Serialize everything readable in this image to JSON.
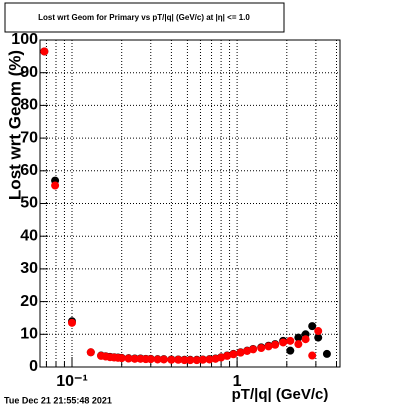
{
  "chart_data": {
    "type": "scatter",
    "title": "Lost wrt Geom for Primary vs pT/|q| (GeV/c) at |η| <= 1.0",
    "x_label": "pT/|q| (GeV/c)",
    "y_label": "Lost wrt Geom (%)",
    "timestamp": "Tue Dec 21 21:55:48 2021",
    "x": [
      0.068,
      0.079,
      0.1,
      0.13,
      0.15,
      0.16,
      0.17,
      0.18,
      0.19,
      0.2,
      0.22,
      0.24,
      0.26,
      0.28,
      0.3,
      0.33,
      0.36,
      0.4,
      0.44,
      0.48,
      0.52,
      0.57,
      0.62,
      0.68,
      0.74,
      0.8,
      0.87,
      0.95,
      1.05,
      1.15,
      1.25,
      1.4,
      1.55,
      1.7,
      1.9,
      2.1,
      2.35,
      2.6,
      2.85,
      3.1,
      3.5
    ],
    "series": [
      {
        "color": "#000000",
        "values": [
          96.5,
          57,
          14,
          4.5,
          3.5,
          3.3,
          3.1,
          3.0,
          2.9,
          2.8,
          2.7,
          2.6,
          2.6,
          2.5,
          2.5,
          2.4,
          2.4,
          2.3,
          2.3,
          2.2,
          2.2,
          2.2,
          2.3,
          2.4,
          2.6,
          3.0,
          3.5,
          4.0,
          4.5,
          5.0,
          5.5,
          6.0,
          6.5,
          7.0,
          8.0,
          5.0,
          9.0,
          10.0,
          12.5,
          9.0,
          4.0
        ]
      },
      {
        "color": "#ff0000",
        "values": [
          96.5,
          55.5,
          13.5,
          4.5,
          3.4,
          3.2,
          3.0,
          2.9,
          2.8,
          2.7,
          2.6,
          2.5,
          2.5,
          2.4,
          2.4,
          2.3,
          2.3,
          2.2,
          2.2,
          2.1,
          2.1,
          2.1,
          2.2,
          2.3,
          2.5,
          2.9,
          3.4,
          3.9,
          4.4,
          4.9,
          5.4,
          5.8,
          6.3,
          6.8,
          7.5,
          8.0,
          7.0,
          8.5,
          3.5,
          11.0,
          null
        ]
      }
    ],
    "xlog": true,
    "xlim": [
      0.064,
      4.2
    ],
    "xticks": [
      {
        "value": 0.1,
        "label": "10⁻¹"
      },
      1
    ],
    "xgrid": [
      0.07,
      0.08,
      0.09,
      0.1,
      0.2,
      0.3,
      0.4,
      0.5,
      0.6,
      0.7,
      0.8,
      0.9,
      1,
      2,
      3,
      4
    ],
    "ylim": [
      0,
      100
    ],
    "yticks": [
      0,
      10,
      20,
      30,
      40,
      50,
      60,
      70,
      80,
      90,
      100
    ],
    "grid": true
  }
}
